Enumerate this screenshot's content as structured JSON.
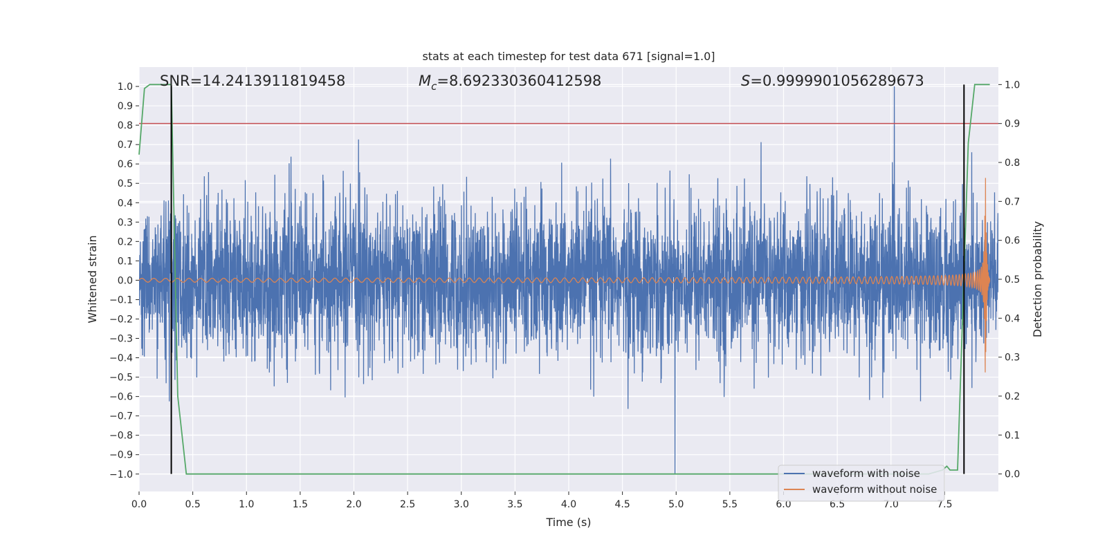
{
  "chart_data": {
    "type": "line",
    "title": "stats at each timestep for test data 671 [signal=1.0]",
    "xlabel": "Time (s)",
    "ylabel_left": "Whitened strain",
    "ylabel_right": "Detection probability",
    "xlim": [
      0.0,
      8.0
    ],
    "ylim_left": [
      -1.09,
      1.1
    ],
    "ylim_right": [
      -0.045,
      1.045
    ],
    "x_ticks": [
      0.0,
      0.5,
      1.0,
      1.5,
      2.0,
      2.5,
      3.0,
      3.5,
      4.0,
      4.5,
      5.0,
      5.5,
      6.0,
      6.5,
      7.0,
      7.5
    ],
    "x_tick_labels": [
      "0.0",
      "0.5",
      "1.0",
      "1.5",
      "2.0",
      "2.5",
      "3.0",
      "3.5",
      "4.0",
      "4.5",
      "5.0",
      "5.5",
      "6.0",
      "6.5",
      "7.0",
      "7.5"
    ],
    "y_left_ticks": [
      1.0,
      0.9,
      0.8,
      0.7,
      0.6,
      0.5,
      0.4,
      0.3,
      0.2,
      0.1,
      0.0,
      -0.1,
      -0.2,
      -0.3,
      -0.4,
      -0.5,
      -0.6,
      -0.7,
      -0.8,
      -0.9,
      -1.0
    ],
    "y_left_tick_labels": [
      "1.0",
      "0.9",
      "0.8",
      "0.7",
      "0.6",
      "0.5",
      "0.4",
      "0.3",
      "0.2",
      "0.1",
      "0.0",
      "−0.1",
      "−0.2",
      "−0.3",
      "−0.4",
      "−0.5",
      "−0.6",
      "−0.7",
      "−0.8",
      "−0.9",
      "−1.0"
    ],
    "y_right_ticks": [
      1.0,
      0.9,
      0.8,
      0.7,
      0.6,
      0.5,
      0.4,
      0.3,
      0.2,
      0.1,
      0.0
    ],
    "y_right_tick_labels": [
      "1.0",
      "0.9",
      "0.8",
      "0.7",
      "0.6",
      "0.5",
      "0.4",
      "0.3",
      "0.2",
      "0.1",
      "0.0"
    ],
    "annotations": {
      "snr": "SNR=14.2413911819458",
      "mc_symbol": "M",
      "mc_sub": "c",
      "mc_value": "=8.692330360412598",
      "s_symbol": "S",
      "s_value": "=0.9999901056289673"
    },
    "threshold_line": {
      "axis": "right",
      "value": 0.9,
      "color": "#c44e52"
    },
    "vertical_markers": [
      {
        "x": 0.3,
        "y_range_right": [
          0.0,
          1.0
        ],
        "color": "#000000"
      },
      {
        "x": 7.68,
        "y_range_right": [
          0.0,
          1.0
        ],
        "color": "#000000"
      }
    ],
    "series": [
      {
        "name": "waveform with noise",
        "axis": "left",
        "color": "#4c72b0",
        "description": "whitened strain with Gaussian noise, dense oscillation ~±0.4 with spikes to ±1.0",
        "n_samples": 4096,
        "peak_max": 1.0,
        "peak_min": -1.0
      },
      {
        "name": "waveform without noise",
        "axis": "left",
        "color": "#dd8452",
        "description": "chirp signal, amplitude grows from ~0.01 to ~0.55 near merger at ~7.9 s",
        "amplitude_start": 0.01,
        "amplitude_peak": 0.55,
        "merger_time": 7.88
      },
      {
        "name": "detection probability",
        "axis": "right",
        "color": "#55a868",
        "x": [
          0.0,
          0.05,
          0.1,
          0.3,
          0.33,
          0.36,
          0.4,
          0.44,
          7.35,
          7.48,
          7.52,
          7.55,
          7.62,
          7.72,
          7.78,
          7.92
        ],
        "y": [
          0.82,
          0.99,
          1.0,
          1.0,
          0.6,
          0.2,
          0.1,
          0.0,
          0.0,
          0.01,
          0.02,
          0.01,
          0.01,
          0.85,
          1.0,
          1.0
        ]
      }
    ],
    "legend": {
      "position": "lower-right",
      "entries": [
        {
          "label": "waveform with noise",
          "color": "#4c72b0"
        },
        {
          "label": "waveform without noise",
          "color": "#dd8452"
        }
      ]
    },
    "background": "#eaeaf2",
    "grid": true
  }
}
